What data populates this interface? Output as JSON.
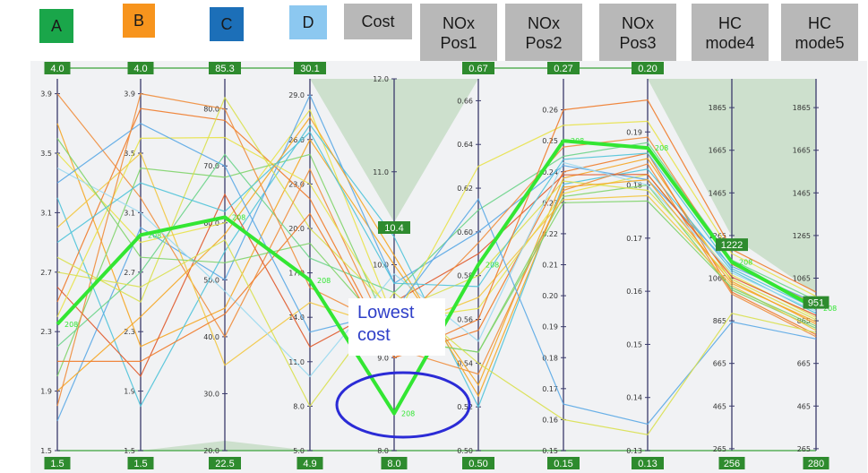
{
  "chart_data": {
    "type": "parallel-coordinates",
    "axes": [
      {
        "key": "A",
        "label": "A",
        "color": "#1aa64a",
        "text_color": "#1a1a1a",
        "top": "4.0",
        "bottom": "1.5",
        "ticks": [
          "3.9",
          "3.5",
          "3.1",
          "2.7",
          "2.3",
          "1.9",
          "1.5"
        ],
        "tick_values": [
          3.9,
          3.5,
          3.1,
          2.7,
          2.3,
          1.9,
          1.5
        ],
        "min": 1.5,
        "max": 4.0
      },
      {
        "key": "B",
        "label": "B",
        "color": "#f7941d",
        "text_color": "#1a1a1a",
        "top": "4.0",
        "bottom": "1.5",
        "ticks": [
          "3.9",
          "3.5",
          "3.1",
          "2.7",
          "2.3",
          "1.9",
          "1.5"
        ],
        "tick_values": [
          3.9,
          3.5,
          3.1,
          2.7,
          2.3,
          1.9,
          1.5
        ],
        "min": 1.5,
        "max": 4.0
      },
      {
        "key": "C",
        "label": "C",
        "color": "#1c6fb8",
        "text_color": "#1a1a1a",
        "top": "85.3",
        "bottom": "22.5",
        "ticks": [
          "80.0",
          "70.0",
          "60.0",
          "50.0",
          "40.0",
          "30.0",
          "20.0"
        ],
        "tick_values": [
          80,
          70,
          60,
          50,
          40,
          30,
          20
        ],
        "min": 20,
        "max": 85.3
      },
      {
        "key": "D",
        "label": "D",
        "color": "#8cc8f0",
        "text_color": "#1a1a1a",
        "top": "30.1",
        "bottom": "4.9",
        "ticks": [
          "29.0",
          "26.0",
          "23.0",
          "20.0",
          "17.0",
          "14.0",
          "11.0",
          "8.0",
          "5.0"
        ],
        "tick_values": [
          29,
          26,
          23,
          20,
          17,
          14,
          11,
          8,
          5
        ],
        "min": 5,
        "max": 30.1
      },
      {
        "key": "Cost",
        "label": "Cost",
        "color": "#b8b8b8",
        "text_color": "#1a1a1a",
        "top": "",
        "bottom": "8.0",
        "ticks": [
          "12.0",
          "11.0",
          "10.0",
          "9.0",
          "8.0"
        ],
        "tick_values": [
          12,
          11,
          10,
          9,
          8
        ],
        "min": 8,
        "max": 12
      },
      {
        "key": "NOxPos1",
        "label": "NOx\nPos1",
        "color": "#b8b8b8",
        "text_color": "#1a1a1a",
        "top": "0.67",
        "bottom": "0.50",
        "ticks": [
          "0.66",
          "0.64",
          "0.62",
          "0.60",
          "0.58",
          "0.56",
          "0.54",
          "0.52",
          "0.50"
        ],
        "tick_values": [
          0.66,
          0.64,
          0.62,
          0.6,
          0.58,
          0.56,
          0.54,
          0.52,
          0.5
        ],
        "min": 0.5,
        "max": 0.67
      },
      {
        "key": "NOxPos2",
        "label": "NOx\nPos2",
        "color": "#b8b8b8",
        "text_color": "#1a1a1a",
        "top": "0.27",
        "bottom": "0.15",
        "ticks": [
          "0.26",
          "0.25",
          "0.24",
          "0.23",
          "0.22",
          "0.21",
          "0.20",
          "0.19",
          "0.18",
          "0.17",
          "0.16",
          "0.15"
        ],
        "tick_values": [
          0.26,
          0.25,
          0.24,
          0.23,
          0.22,
          0.21,
          0.2,
          0.19,
          0.18,
          0.17,
          0.16,
          0.15
        ],
        "min": 0.15,
        "max": 0.27
      },
      {
        "key": "NOxPos3",
        "label": "NOx\nPos3",
        "color": "#b8b8b8",
        "text_color": "#1a1a1a",
        "top": "0.20",
        "bottom": "0.13",
        "ticks": [
          "0.19",
          "0.18",
          "0.17",
          "0.16",
          "0.15",
          "0.14",
          "0.13"
        ],
        "tick_values": [
          0.19,
          0.18,
          0.17,
          0.16,
          0.15,
          0.14,
          0.13
        ],
        "min": 0.13,
        "max": 0.2
      },
      {
        "key": "HCmode4",
        "label": "HC\nmode4",
        "color": "#b8b8b8",
        "text_color": "#1a1a1a",
        "top": "",
        "bottom": "256",
        "ticks": [
          "1865",
          "1665",
          "1465",
          "1265",
          "1065",
          "865",
          "665",
          "465",
          "265"
        ],
        "tick_values": [
          1865,
          1665,
          1465,
          1265,
          1065,
          865,
          665,
          465,
          265
        ],
        "min": 256,
        "max": 2000
      },
      {
        "key": "HCmode5",
        "label": "HC\nmode5",
        "color": "#b8b8b8",
        "text_color": "#1a1a1a",
        "top": "",
        "bottom": "280",
        "ticks": [
          "1865",
          "1665",
          "1465",
          "1265",
          "1065",
          "865",
          "665",
          "465",
          "265"
        ],
        "tick_values": [
          1865,
          1665,
          1465,
          1265,
          1065,
          865,
          665,
          465,
          265
        ],
        "min": 256,
        "max": 2000
      }
    ],
    "brush_markers": [
      {
        "axis": "Cost",
        "label": "10.4",
        "value": 10.4
      },
      {
        "axis": "HCmode4",
        "label": "1222",
        "value": 1222
      },
      {
        "axis": "HCmode5",
        "label": "951",
        "value": 951
      }
    ],
    "highlight": {
      "label": "208",
      "color": "#33e633",
      "values": [
        2.35,
        2.95,
        61,
        16.5,
        8.4,
        0.585,
        0.25,
        0.187,
        1140,
        925
      ]
    },
    "background_lines": [
      [
        3.7,
        2.2,
        45,
        26,
        10.0,
        0.53,
        0.238,
        0.185,
        1050,
        850
      ],
      [
        3.5,
        2.9,
        60,
        28,
        9.4,
        0.565,
        0.233,
        0.182,
        1080,
        880
      ],
      [
        2.0,
        3.4,
        68,
        25,
        9.2,
        0.545,
        0.232,
        0.18,
        1010,
        830
      ],
      [
        3.2,
        1.8,
        55,
        27,
        10.3,
        0.52,
        0.236,
        0.183,
        1100,
        900
      ],
      [
        2.5,
        3.8,
        78,
        22,
        9.0,
        0.555,
        0.24,
        0.186,
        1000,
        800
      ],
      [
        1.7,
        3.0,
        50,
        29,
        9.8,
        0.6,
        0.242,
        0.181,
        1120,
        950
      ],
      [
        2.8,
        2.5,
        82,
        20,
        9.5,
        0.58,
        0.237,
        0.179,
        1060,
        870
      ],
      [
        3.9,
        3.2,
        40,
        24,
        9.1,
        0.535,
        0.234,
        0.184,
        990,
        790
      ],
      [
        2.2,
        2.7,
        72,
        18,
        9.7,
        0.61,
        0.245,
        0.188,
        1150,
        960
      ],
      [
        3.0,
        3.5,
        35,
        15,
        9.3,
        0.57,
        0.231,
        0.178,
        1030,
        820
      ],
      [
        2.6,
        2.0,
        65,
        12,
        9.6,
        0.59,
        0.239,
        0.182,
        1070,
        890
      ],
      [
        3.4,
        3.1,
        48,
        10,
        9.9,
        0.55,
        0.243,
        0.18,
        1090,
        910
      ],
      [
        1.9,
        2.4,
        58,
        27.5,
        10.1,
        0.525,
        0.235,
        0.181,
        1040,
        860
      ],
      [
        2.4,
        3.6,
        75,
        23,
        9.4,
        0.63,
        0.255,
        0.192,
        1180,
        980
      ],
      [
        3.6,
        2.8,
        53,
        19,
        9.2,
        0.545,
        0.23,
        0.177,
        1020,
        840
      ],
      [
        2.9,
        3.3,
        62,
        26.5,
        9.8,
        0.575,
        0.244,
        0.186,
        1110,
        920
      ],
      [
        2.1,
        2.1,
        44,
        21,
        9.0,
        0.56,
        0.26,
        0.196,
        1200,
        1000
      ],
      [
        3.3,
        3.7,
        70,
        13,
        9.5,
        0.615,
        0.165,
        0.135,
        860,
        780
      ],
      [
        2.7,
        2.6,
        57,
        8,
        9.7,
        0.54,
        0.16,
        0.133,
        900,
        810
      ],
      [
        1.8,
        3.9,
        80,
        16,
        9.3,
        0.595,
        0.248,
        0.189,
        1130,
        940
      ]
    ]
  }
}
